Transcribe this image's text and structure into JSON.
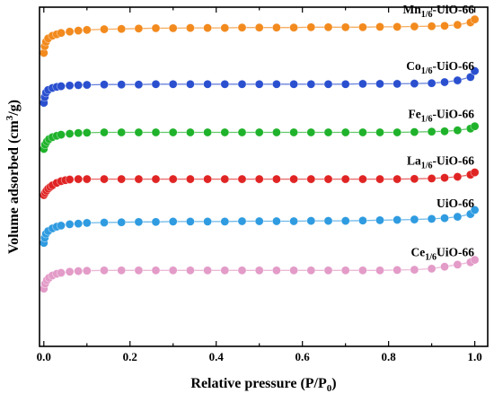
{
  "chart_data": {
    "type": "scatter",
    "title": "",
    "xlabel": {
      "main": "Relative pressure (P/P",
      "sub": "0",
      "tail": ")"
    },
    "ylabel": {
      "main": "Volume adsorbed (cm",
      "sup": "3",
      "tail": "/g)"
    },
    "xlim": [
      -0.01,
      1.03
    ],
    "xticks": [
      0.0,
      0.2,
      0.4,
      0.6,
      0.8,
      1.0
    ],
    "xtick_labels": [
      "0.0",
      "0.2",
      "0.4",
      "0.6",
      "0.8",
      "1.0"
    ],
    "y_tick_labels_shown": false,
    "ylim": [
      0,
      100
    ],
    "grid": false,
    "legend": "inline labels at right end of each curve",
    "series": [
      {
        "name": "Mn1/6-UiO-66",
        "label": {
          "pre": "Mn",
          "sub": "1/6",
          "post": "-UiO-66"
        },
        "color": "#f28a1e",
        "x": [
          0.0,
          0.002,
          0.005,
          0.01,
          0.02,
          0.03,
          0.04,
          0.06,
          0.08,
          0.1,
          0.14,
          0.18,
          0.22,
          0.26,
          0.3,
          0.34,
          0.38,
          0.42,
          0.46,
          0.5,
          0.54,
          0.58,
          0.62,
          0.66,
          0.7,
          0.74,
          0.78,
          0.82,
          0.86,
          0.9,
          0.93,
          0.96,
          0.99,
          1.0
        ],
        "y": [
          86.5,
          88.5,
          89.8,
          90.8,
          91.6,
          92.0,
          92.4,
          92.8,
          93.1,
          93.3,
          93.5,
          93.6,
          93.7,
          93.8,
          93.8,
          93.9,
          93.9,
          93.9,
          94.0,
          94.0,
          94.0,
          94.0,
          94.1,
          94.1,
          94.1,
          94.1,
          94.2,
          94.2,
          94.3,
          94.4,
          94.5,
          94.8,
          95.5,
          96.4
        ]
      },
      {
        "name": "Co1/6-UiO-66",
        "label": {
          "pre": "Co",
          "sub": "1/6",
          "post": "-UiO-66"
        },
        "color": "#2a4fcf",
        "x": [
          0.0,
          0.002,
          0.005,
          0.01,
          0.02,
          0.03,
          0.04,
          0.06,
          0.08,
          0.1,
          0.14,
          0.18,
          0.22,
          0.26,
          0.3,
          0.34,
          0.38,
          0.42,
          0.46,
          0.5,
          0.54,
          0.58,
          0.62,
          0.66,
          0.7,
          0.74,
          0.78,
          0.82,
          0.86,
          0.9,
          0.93,
          0.96,
          0.99,
          1.0
        ],
        "y": [
          71.8,
          73.5,
          74.8,
          75.6,
          76.2,
          76.5,
          76.7,
          76.9,
          77.0,
          77.1,
          77.2,
          77.2,
          77.2,
          77.3,
          77.3,
          77.3,
          77.3,
          77.3,
          77.3,
          77.3,
          77.3,
          77.3,
          77.3,
          77.3,
          77.3,
          77.4,
          77.4,
          77.4,
          77.5,
          77.6,
          77.9,
          78.4,
          79.4,
          81.2
        ]
      },
      {
        "name": "Fe1/6-UiO-66",
        "label": {
          "pre": "Fe",
          "sub": "1/6",
          "post": "-UiO-66"
        },
        "color": "#1fb22b",
        "x": [
          0.0,
          0.003,
          0.007,
          0.012,
          0.02,
          0.03,
          0.04,
          0.06,
          0.08,
          0.1,
          0.14,
          0.18,
          0.22,
          0.26,
          0.3,
          0.34,
          0.38,
          0.42,
          0.46,
          0.5,
          0.54,
          0.58,
          0.62,
          0.66,
          0.7,
          0.74,
          0.78,
          0.82,
          0.86,
          0.9,
          0.93,
          0.96,
          0.99,
          1.0
        ],
        "y": [
          58.2,
          59.5,
          60.4,
          61.1,
          61.7,
          62.1,
          62.4,
          62.7,
          62.9,
          63.0,
          63.1,
          63.1,
          63.1,
          63.1,
          63.1,
          63.1,
          63.1,
          63.1,
          63.1,
          63.1,
          63.1,
          63.1,
          63.1,
          63.1,
          63.1,
          63.1,
          63.1,
          63.1,
          63.2,
          63.3,
          63.4,
          63.7,
          64.2,
          64.9
        ]
      },
      {
        "name": "La1/6-UiO-66",
        "label": {
          "pre": "La",
          "sub": "1/6",
          "post": "-UiO-66"
        },
        "color": "#e02424",
        "x": [
          0.0,
          0.003,
          0.006,
          0.01,
          0.015,
          0.02,
          0.03,
          0.04,
          0.05,
          0.06,
          0.08,
          0.1,
          0.14,
          0.18,
          0.22,
          0.26,
          0.3,
          0.34,
          0.38,
          0.42,
          0.46,
          0.5,
          0.54,
          0.58,
          0.62,
          0.66,
          0.7,
          0.74,
          0.78,
          0.82,
          0.86,
          0.9,
          0.93,
          0.96,
          0.99,
          1.0
        ],
        "y": [
          44.6,
          45.3,
          45.9,
          46.5,
          47.0,
          47.5,
          48.2,
          48.7,
          49.0,
          49.2,
          49.3,
          49.3,
          49.3,
          49.3,
          49.3,
          49.3,
          49.3,
          49.3,
          49.3,
          49.3,
          49.3,
          49.3,
          49.3,
          49.3,
          49.3,
          49.3,
          49.3,
          49.3,
          49.3,
          49.3,
          49.4,
          49.5,
          49.7,
          50.0,
          50.6,
          51.3
        ]
      },
      {
        "name": "UiO-66",
        "label": {
          "pre": "UiO-66",
          "sub": "",
          "post": ""
        },
        "color": "#2f9be0",
        "x": [
          0.0,
          0.002,
          0.005,
          0.01,
          0.02,
          0.03,
          0.04,
          0.06,
          0.08,
          0.1,
          0.14,
          0.18,
          0.22,
          0.26,
          0.3,
          0.34,
          0.38,
          0.42,
          0.46,
          0.5,
          0.54,
          0.58,
          0.62,
          0.66,
          0.7,
          0.74,
          0.78,
          0.82,
          0.86,
          0.9,
          0.93,
          0.96,
          0.99,
          1.0
        ],
        "y": [
          30.5,
          32.0,
          33.2,
          34.0,
          34.8,
          35.3,
          35.6,
          36.0,
          36.2,
          36.4,
          36.5,
          36.6,
          36.7,
          36.7,
          36.8,
          36.8,
          36.8,
          36.8,
          36.9,
          36.9,
          36.9,
          36.9,
          37.0,
          37.0,
          37.0,
          37.1,
          37.2,
          37.3,
          37.4,
          37.6,
          37.8,
          38.2,
          39.0,
          40.2
        ]
      },
      {
        "name": "Ce1/6UiO-66",
        "label": {
          "pre": "Ce",
          "sub": "1/6",
          "post": "UiO-66"
        },
        "color": "#e39bc8",
        "x": [
          0.0,
          0.003,
          0.007,
          0.012,
          0.02,
          0.03,
          0.04,
          0.06,
          0.08,
          0.1,
          0.14,
          0.18,
          0.22,
          0.26,
          0.3,
          0.34,
          0.38,
          0.42,
          0.46,
          0.5,
          0.54,
          0.58,
          0.62,
          0.66,
          0.7,
          0.74,
          0.78,
          0.82,
          0.86,
          0.9,
          0.93,
          0.96,
          0.99,
          1.0
        ],
        "y": [
          17.0,
          18.5,
          19.5,
          20.2,
          20.9,
          21.4,
          21.7,
          22.0,
          22.2,
          22.3,
          22.4,
          22.4,
          22.4,
          22.4,
          22.4,
          22.4,
          22.4,
          22.4,
          22.4,
          22.4,
          22.4,
          22.4,
          22.4,
          22.4,
          22.4,
          22.4,
          22.4,
          22.5,
          22.6,
          22.9,
          23.5,
          24.1,
          24.8,
          25.5
        ]
      }
    ]
  }
}
